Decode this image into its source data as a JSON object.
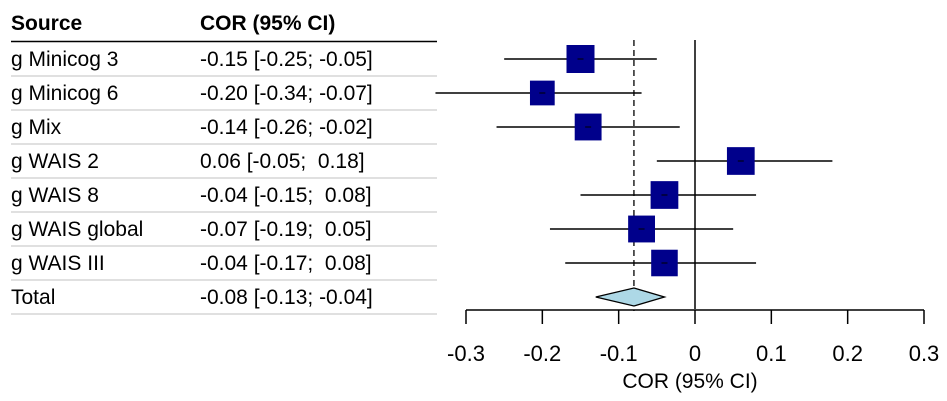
{
  "chart_data": {
    "type": "forest",
    "columns": {
      "source": "Source",
      "estimate": "COR (95% CI)"
    },
    "studies": [
      {
        "name": "g Minicog 3",
        "ci_text": "-0.15 [-0.25; -0.05]",
        "estimate": -0.15,
        "lower": -0.25,
        "upper": -0.05,
        "weight_rel": 1.0
      },
      {
        "name": "g Minicog 6",
        "ci_text": "-0.20 [-0.34; -0.07]",
        "estimate": -0.2,
        "lower": -0.34,
        "upper": -0.07,
        "weight_rel": 0.78
      },
      {
        "name": "g Mix",
        "ci_text": "-0.14 [-0.26; -0.02]",
        "estimate": -0.14,
        "lower": -0.26,
        "upper": -0.02,
        "weight_rel": 0.92
      },
      {
        "name": "g WAIS 2",
        "ci_text": "0.06 [-0.05;  0.18]",
        "estimate": 0.06,
        "lower": -0.05,
        "upper": 0.18,
        "weight_rel": 0.98
      },
      {
        "name": "g WAIS 8",
        "ci_text": "-0.04 [-0.15;  0.08]",
        "estimate": -0.04,
        "lower": -0.15,
        "upper": 0.08,
        "weight_rel": 0.98
      },
      {
        "name": "g WAIS global",
        "ci_text": "-0.07 [-0.19;  0.05]",
        "estimate": -0.07,
        "lower": -0.19,
        "upper": 0.05,
        "weight_rel": 0.92
      },
      {
        "name": "g WAIS III",
        "ci_text": "-0.04 [-0.17;  0.08]",
        "estimate": -0.04,
        "lower": -0.17,
        "upper": 0.08,
        "weight_rel": 0.9
      }
    ],
    "total": {
      "name": "Total",
      "ci_text": "-0.08 [-0.13; -0.04]",
      "estimate": -0.08,
      "lower": -0.13,
      "upper": -0.04
    },
    "xaxis": {
      "ticks": [
        -0.3,
        -0.2,
        -0.1,
        0,
        0.1,
        0.2,
        0.3
      ],
      "tick_labels": [
        "-0.3",
        "-0.2",
        "-0.1",
        "0",
        "0.1",
        "0.2",
        "0.3"
      ],
      "xlim": [
        -0.3,
        0.3
      ],
      "label": "COR (95% CI)"
    },
    "reference_line": 0,
    "pooled_line": -0.08,
    "colors": {
      "box": "#00008b",
      "diamond": "#add8e6",
      "line": "#000000",
      "separator": "#c0c0c0"
    }
  }
}
